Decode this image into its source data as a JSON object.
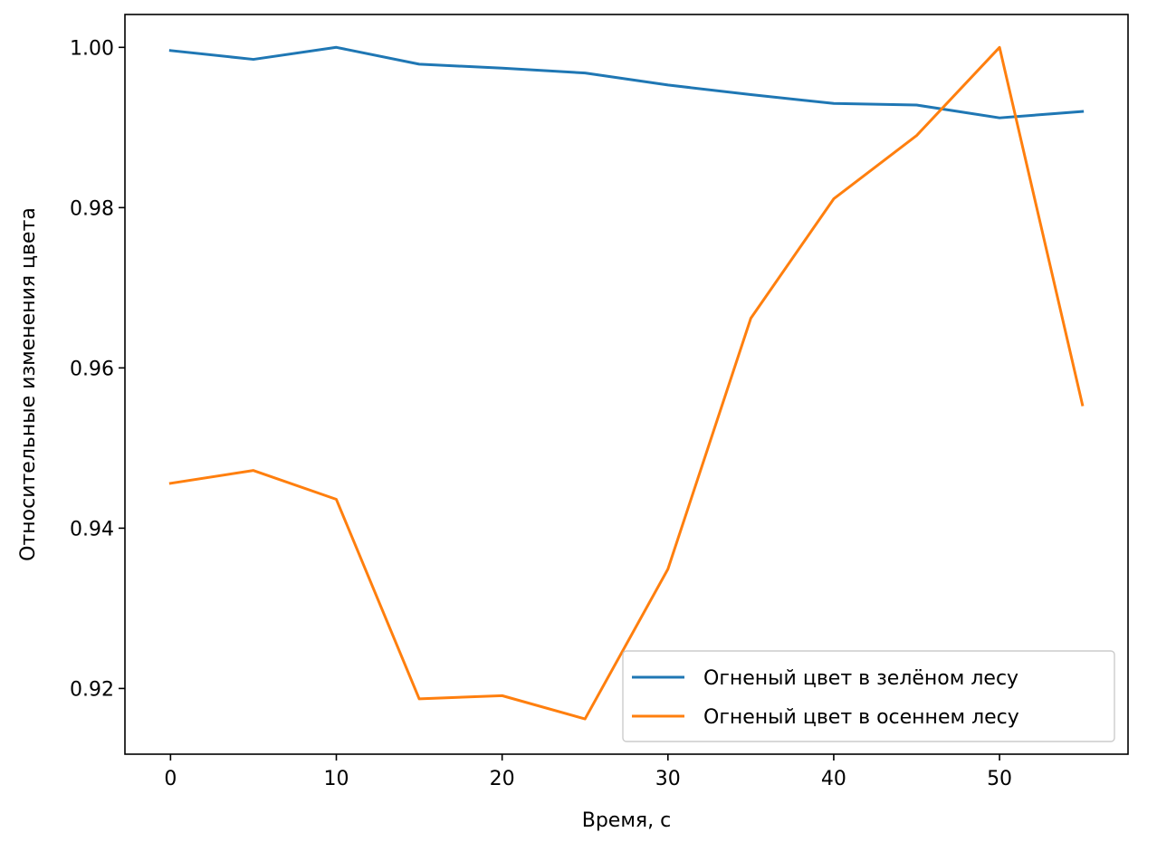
{
  "chart_data": {
    "type": "line",
    "title": "",
    "xlabel": "Время, с",
    "ylabel": "Относительные изменения цвета",
    "x": [
      0,
      5,
      10,
      15,
      20,
      25,
      30,
      35,
      40,
      45,
      50,
      55
    ],
    "xlim": [
      -2.75,
      57.75
    ],
    "ylim": [
      0.9118,
      1.0041
    ],
    "xticks": [
      0,
      10,
      20,
      30,
      40,
      50
    ],
    "xtick_labels": [
      "0",
      "10",
      "20",
      "30",
      "40",
      "50"
    ],
    "yticks": [
      0.92,
      0.94,
      0.96,
      0.98,
      1.0
    ],
    "ytick_labels": [
      "0.92",
      "0.94",
      "0.96",
      "0.98",
      "1.00"
    ],
    "grid": false,
    "legend_position": "lower-right",
    "series": [
      {
        "name": "Огненый цвет в зелёном лесу",
        "color": "#1f77b4",
        "values": [
          0.9996,
          0.9985,
          1.0,
          0.9979,
          0.9974,
          0.9968,
          0.9953,
          0.9941,
          0.993,
          0.9928,
          0.9912,
          0.992
        ]
      },
      {
        "name": "Огненый цвет в осеннем лесу",
        "color": "#ff7f0e",
        "values": [
          0.9456,
          0.9472,
          0.9436,
          0.9187,
          0.9191,
          0.9162,
          0.9349,
          0.9662,
          0.9811,
          0.989,
          1.0,
          0.9554
        ]
      }
    ]
  }
}
